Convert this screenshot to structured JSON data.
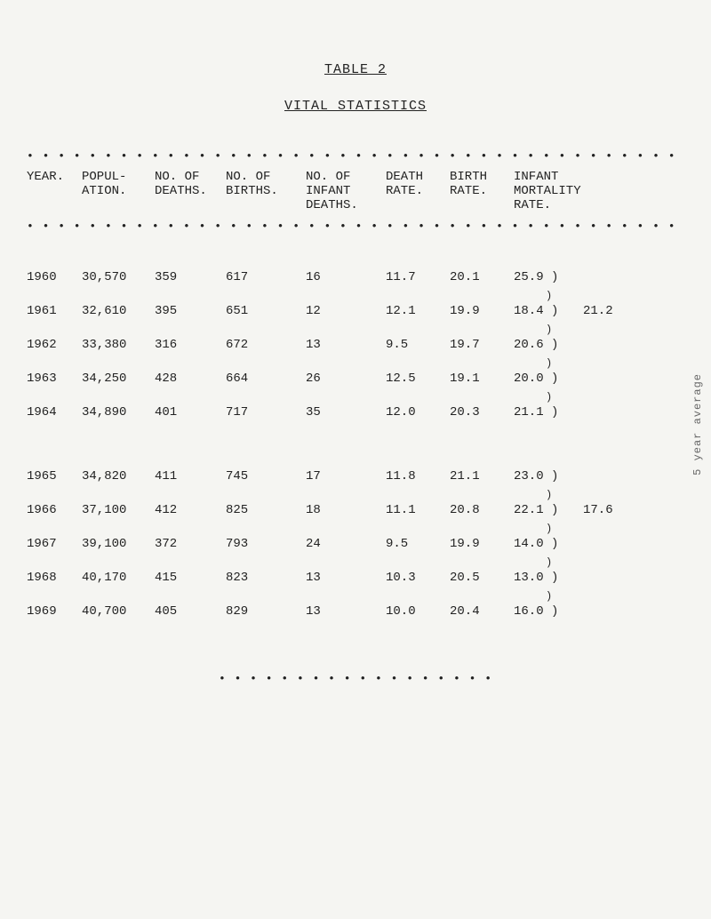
{
  "title_top": "TABLE 2",
  "title_sub": "VITAL STATISTICS",
  "dot_long": "• • • • • • • • • • • • • • • • • • • • • • • • • • • • • • • • • • • • • • • • • • • • • • • • • • • • • • • • • • • • • • • • • • • • • • • • • • • • • • • • • •",
  "dot_mid": "• • • • • • • • • • • • • • • • • •",
  "headers": {
    "year": "YEAR.",
    "pop": "POPUL-\nATION.",
    "deaths": "NO. OF\nDEATHS.",
    "births": "NO. OF\nBIRTHS.",
    "infd": "NO. OF\nINFANT\nDEATHS.",
    "drate": "DEATH\nRATE.",
    "brate": "BIRTH\nRATE.",
    "imr": "INFANT\nMORTALITY\nRATE."
  },
  "group_avg": {
    "first": "21.2",
    "second": "17.6"
  },
  "side_label": "5 year average",
  "rows_a": [
    {
      "year": "1960",
      "pop": "30,570",
      "deaths": "359",
      "births": "617",
      "infd": "16",
      "drate": "11.7",
      "brate": "20.1",
      "imr": "25.9 )"
    },
    {
      "year": "1961",
      "pop": "32,610",
      "deaths": "395",
      "births": "651",
      "infd": "12",
      "drate": "12.1",
      "brate": "19.9",
      "imr": "18.4 )"
    },
    {
      "year": "1962",
      "pop": "33,380",
      "deaths": "316",
      "births": "672",
      "infd": "13",
      "drate": "9.5",
      "brate": "19.7",
      "imr": "20.6 )"
    },
    {
      "year": "1963",
      "pop": "34,250",
      "deaths": "428",
      "births": "664",
      "infd": "26",
      "drate": "12.5",
      "brate": "19.1",
      "imr": "20.0 )"
    },
    {
      "year": "1964",
      "pop": "34,890",
      "deaths": "401",
      "births": "717",
      "infd": "35",
      "drate": "12.0",
      "brate": "20.3",
      "imr": "21.1 )"
    }
  ],
  "rows_b": [
    {
      "year": "1965",
      "pop": "34,820",
      "deaths": "411",
      "births": "745",
      "infd": "17",
      "drate": "11.8",
      "brate": "21.1",
      "imr": "23.0 )"
    },
    {
      "year": "1966",
      "pop": "37,100",
      "deaths": "412",
      "births": "825",
      "infd": "18",
      "drate": "11.1",
      "brate": "20.8",
      "imr": "22.1 )"
    },
    {
      "year": "1967",
      "pop": "39,100",
      "deaths": "372",
      "births": "793",
      "infd": "24",
      "drate": "9.5",
      "brate": "19.9",
      "imr": "14.0 )"
    },
    {
      "year": "1968",
      "pop": "40,170",
      "deaths": "415",
      "births": "823",
      "infd": "13",
      "drate": "10.3",
      "brate": "20.5",
      "imr": "13.0 )"
    },
    {
      "year": "1969",
      "pop": "40,700",
      "deaths": "405",
      "births": "829",
      "infd": "13",
      "drate": "10.0",
      "brate": "20.4",
      "imr": "16.0 )"
    }
  ]
}
